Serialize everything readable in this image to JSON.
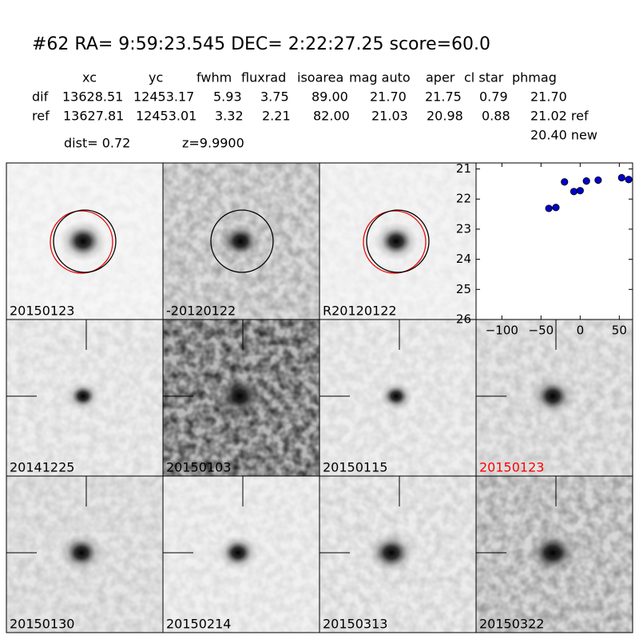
{
  "header": {
    "title": "#62   RA= 9:59:23.545 DEC= 2:22:27.25      score=60.0"
  },
  "table": {
    "columns": [
      "xc",
      "yc",
      "fwhm",
      "fluxrad",
      "isoarea",
      "mag auto",
      "aper",
      "cl star",
      "phmag"
    ],
    "rows": [
      [
        "dif",
        "13628.51",
        "12453.17",
        "5.93",
        "3.75",
        "89.00",
        "21.70",
        "21.75",
        "0.79",
        "21.70"
      ],
      [
        "ref",
        "13627.81",
        "12453.01",
        "3.32",
        "2.21",
        "82.00",
        "21.03",
        "20.98",
        "0.88",
        "21.02 ref"
      ]
    ],
    "extra": "20.40 new",
    "dist": "dist=  0.72",
    "z": "z=9.9900"
  },
  "stamps": [
    {
      "label": "20150123"
    },
    {
      "label": "-20120122"
    },
    {
      "label": "R20120122"
    },
    {
      "label": "20141225"
    },
    {
      "label": "20150103"
    },
    {
      "label": "20150115"
    },
    {
      "label": "20150123"
    },
    {
      "label": "20150130"
    },
    {
      "label": "20150214"
    },
    {
      "label": "20150313"
    },
    {
      "label": "20150322"
    }
  ],
  "chart_data": {
    "type": "scatter",
    "color": "#0000cc",
    "x": [
      -40,
      -31,
      -20,
      -8,
      0,
      8,
      23,
      53,
      62
    ],
    "values": [
      22.31,
      22.28,
      21.43,
      21.75,
      21.72,
      21.4,
      21.37,
      21.29,
      21.35
    ],
    "xlim": [
      -133,
      67
    ],
    "ylim": [
      20.8,
      26
    ],
    "y_inverted": true,
    "xticks": [
      {
        "value": -100,
        "label": "−100"
      },
      {
        "value": -50,
        "label": "−50"
      },
      0,
      50
    ],
    "yticks": [
      21,
      22,
      23,
      24,
      25,
      26
    ]
  }
}
